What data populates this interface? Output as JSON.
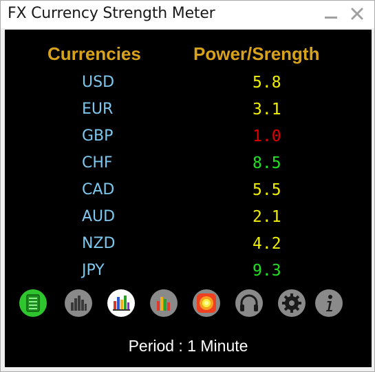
{
  "window": {
    "title": "FX Currency Strength Meter"
  },
  "table": {
    "header_currency": "Currencies",
    "header_power": "Power/Srength",
    "rows": [
      {
        "code": "USD",
        "value": "5.8",
        "color": "#f0f000"
      },
      {
        "code": "EUR",
        "value": "3.1",
        "color": "#f0f000"
      },
      {
        "code": "GBP",
        "value": "1.0",
        "color": "#e00000"
      },
      {
        "code": "CHF",
        "value": "8.5",
        "color": "#22e022"
      },
      {
        "code": "CAD",
        "value": "5.5",
        "color": "#f0f000"
      },
      {
        "code": "AUD",
        "value": "2.1",
        "color": "#f0f000"
      },
      {
        "code": "NZD",
        "value": "4.2",
        "color": "#f0f000"
      },
      {
        "code": "JPY",
        "value": "9.3",
        "color": "#22e022"
      }
    ]
  },
  "toolbar": {
    "icons": [
      "list-view-icon",
      "bar-chart-gray-icon",
      "bar-chart-color-icon",
      "bar-chart-colored-gray-icon",
      "heatmap-icon",
      "headphones-icon",
      "gear-icon",
      "info-icon"
    ],
    "active": "list-view-icon"
  },
  "status": {
    "period_label": "Period : ",
    "period_value": "1 Minute"
  },
  "colors": {
    "header": "#d8a21c",
    "currency_code": "#7ec8f0",
    "background": "#000000",
    "active_icon": "#2ec52e"
  }
}
